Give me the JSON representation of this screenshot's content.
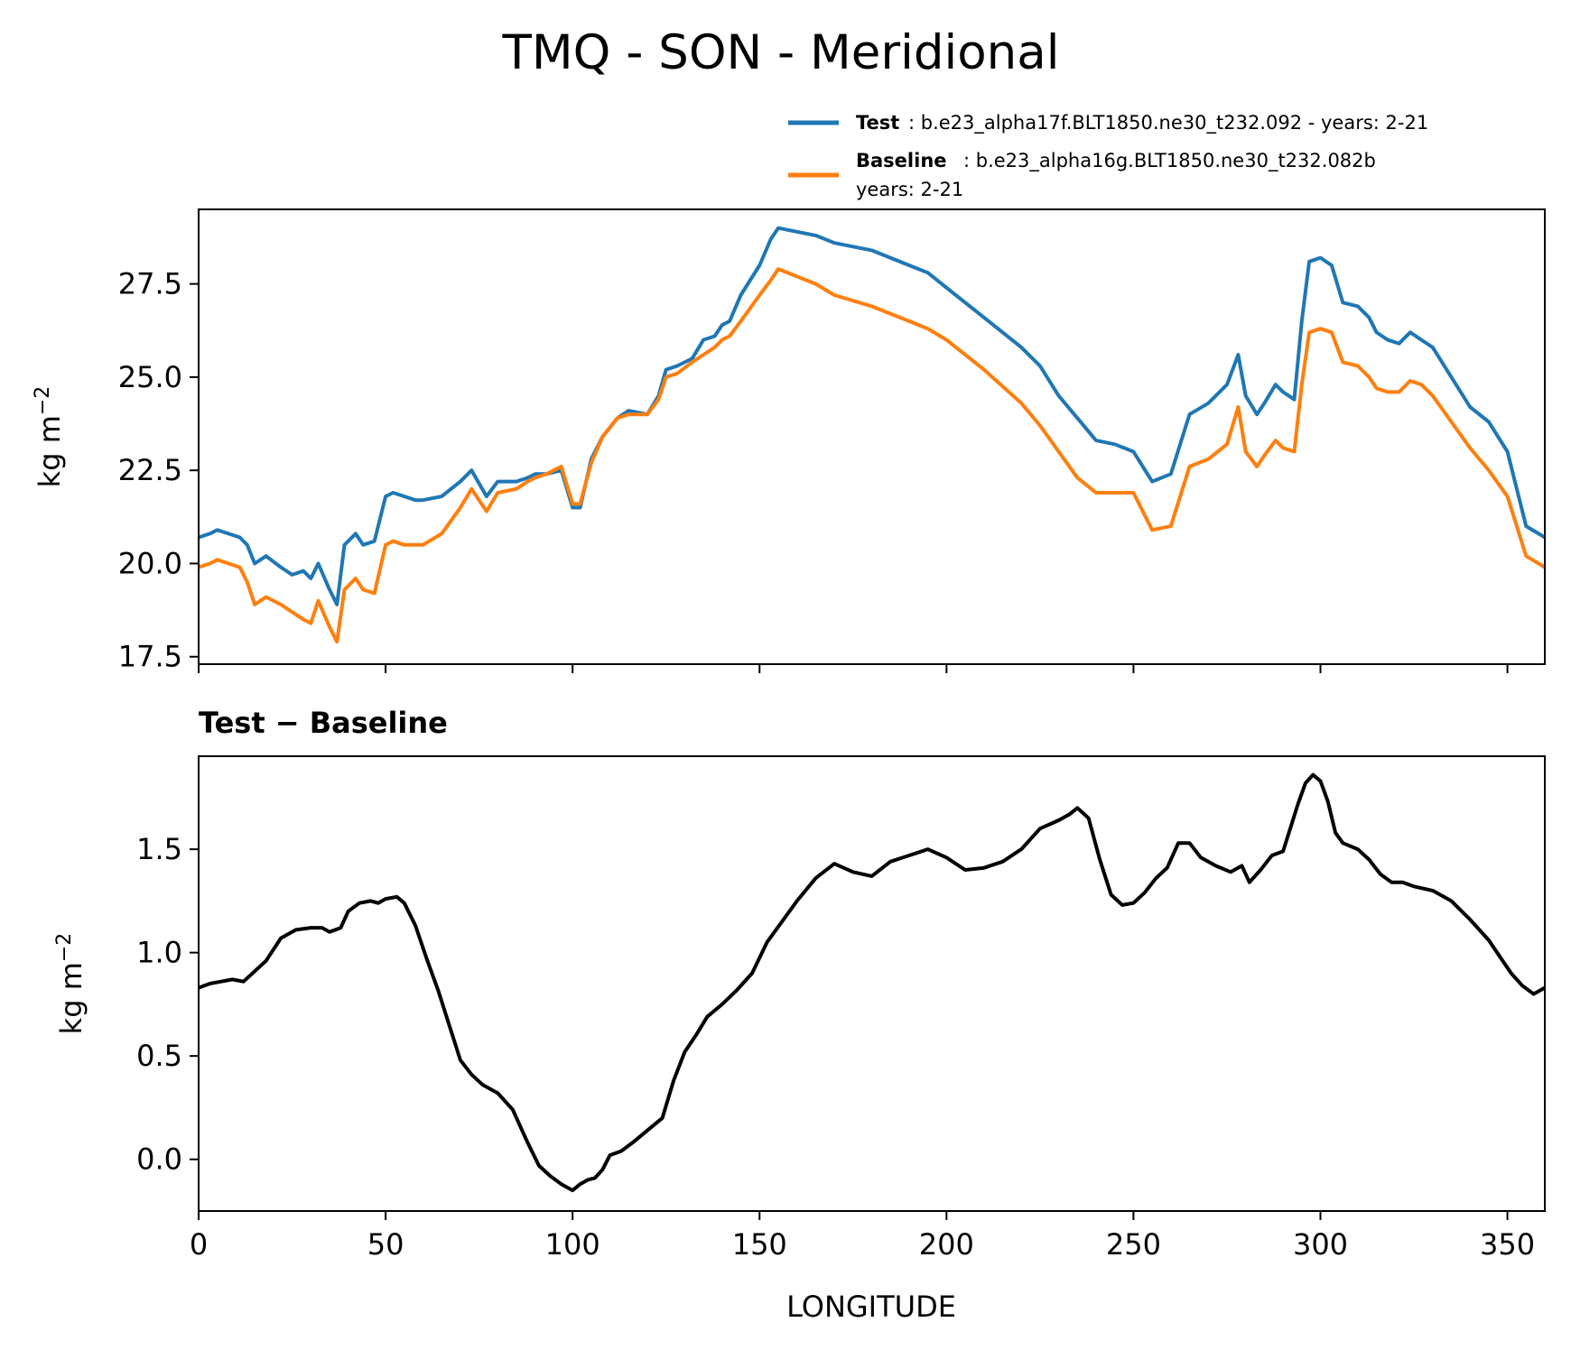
{
  "figure": {
    "title": "TMQ - SON - Meridional",
    "xlabel": "LONGITUDE"
  },
  "legend": {
    "test_name": "Test",
    "test_text": ": b.e23_alpha17f.BLT1850.ne30_t232.092 - years: 2-21",
    "baseline_name": "Baseline",
    "baseline_text": ": b.e23_alpha16g.BLT1850.ne30_t232.082b",
    "baseline_years": "years: 2-21"
  },
  "colors": {
    "test": "#1f77b4",
    "baseline": "#ff7f0e",
    "diff": "#000000"
  },
  "chart_data": [
    {
      "type": "line",
      "title": "",
      "xlabel": "",
      "ylabel": "kg m",
      "ylabel_sup": "−2",
      "xlim": [
        0,
        360
      ],
      "ylim": [
        17.3,
        29.5
      ],
      "yticks": [
        "17.5",
        "20.0",
        "22.5",
        "25.0",
        "27.5"
      ],
      "xticks": [
        0,
        50,
        100,
        150,
        200,
        250,
        300,
        350
      ],
      "grid": false,
      "legend_position": "above-right",
      "series": [
        {
          "name": "Test",
          "x": [
            0,
            3,
            5,
            8,
            11,
            13,
            15,
            18,
            22,
            25,
            28,
            30,
            32,
            35,
            37,
            39,
            42,
            44,
            47,
            50,
            52,
            55,
            58,
            60,
            65,
            70,
            73,
            77,
            80,
            85,
            88,
            90,
            93,
            97,
            100,
            102,
            105,
            108,
            112,
            115,
            120,
            123,
            125,
            128,
            132,
            135,
            138,
            140,
            142,
            145,
            150,
            153,
            155,
            160,
            165,
            170,
            180,
            190,
            195,
            200,
            205,
            210,
            220,
            225,
            230,
            235,
            240,
            245,
            250,
            255,
            260,
            265,
            270,
            275,
            278,
            280,
            283,
            285,
            288,
            290,
            293,
            295,
            297,
            300,
            303,
            306,
            310,
            313,
            315,
            318,
            321,
            324,
            327,
            330,
            335,
            340,
            345,
            350,
            355,
            360
          ],
          "y": [
            20.7,
            20.8,
            20.9,
            20.8,
            20.7,
            20.5,
            20.0,
            20.2,
            19.9,
            19.7,
            19.8,
            19.6,
            20.0,
            19.3,
            18.9,
            20.5,
            20.8,
            20.5,
            20.6,
            21.8,
            21.9,
            21.8,
            21.7,
            21.7,
            21.8,
            22.2,
            22.5,
            21.8,
            22.2,
            22.2,
            22.3,
            22.4,
            22.4,
            22.5,
            21.5,
            21.5,
            22.8,
            23.4,
            23.9,
            24.1,
            24.0,
            24.5,
            25.2,
            25.3,
            25.5,
            26.0,
            26.1,
            26.4,
            26.5,
            27.2,
            28.0,
            28.7,
            29.0,
            28.9,
            28.8,
            28.6,
            28.4,
            28.0,
            27.8,
            27.4,
            27.0,
            26.6,
            25.8,
            25.3,
            24.5,
            23.9,
            23.3,
            23.2,
            23.0,
            22.2,
            22.4,
            24.0,
            24.3,
            24.8,
            25.6,
            24.5,
            24.0,
            24.3,
            24.8,
            24.6,
            24.4,
            26.5,
            28.1,
            28.2,
            28.0,
            27.0,
            26.9,
            26.6,
            26.2,
            26.0,
            25.9,
            26.2,
            26.0,
            25.8,
            25.0,
            24.2,
            23.8,
            23.0,
            21.0,
            20.7
          ]
        },
        {
          "name": "Baseline",
          "x": [
            0,
            3,
            5,
            8,
            11,
            13,
            15,
            18,
            22,
            25,
            28,
            30,
            32,
            35,
            37,
            39,
            42,
            44,
            47,
            50,
            52,
            55,
            58,
            60,
            65,
            70,
            73,
            77,
            80,
            85,
            88,
            90,
            93,
            97,
            100,
            102,
            105,
            108,
            112,
            115,
            120,
            123,
            125,
            128,
            132,
            135,
            138,
            140,
            142,
            145,
            150,
            153,
            155,
            160,
            165,
            170,
            180,
            190,
            195,
            200,
            205,
            210,
            220,
            225,
            230,
            235,
            240,
            245,
            250,
            255,
            260,
            265,
            270,
            275,
            278,
            280,
            283,
            285,
            288,
            290,
            293,
            295,
            297,
            300,
            303,
            306,
            310,
            313,
            315,
            318,
            321,
            324,
            327,
            330,
            335,
            340,
            345,
            350,
            355,
            360
          ],
          "y": [
            19.9,
            20.0,
            20.1,
            20.0,
            19.9,
            19.5,
            18.9,
            19.1,
            18.9,
            18.7,
            18.5,
            18.4,
            19.0,
            18.3,
            17.9,
            19.3,
            19.6,
            19.3,
            19.2,
            20.5,
            20.6,
            20.5,
            20.5,
            20.5,
            20.8,
            21.5,
            22.0,
            21.4,
            21.9,
            22.0,
            22.2,
            22.3,
            22.4,
            22.6,
            21.6,
            21.6,
            22.7,
            23.4,
            23.9,
            24.0,
            24.0,
            24.4,
            25.0,
            25.1,
            25.4,
            25.6,
            25.8,
            26.0,
            26.1,
            26.5,
            27.2,
            27.6,
            27.9,
            27.7,
            27.5,
            27.2,
            26.9,
            26.5,
            26.3,
            26.0,
            25.6,
            25.2,
            24.3,
            23.7,
            23.0,
            22.3,
            21.9,
            21.9,
            21.9,
            20.9,
            21.0,
            22.6,
            22.8,
            23.2,
            24.2,
            23.0,
            22.6,
            22.9,
            23.3,
            23.1,
            23.0,
            24.8,
            26.2,
            26.3,
            26.2,
            25.4,
            25.3,
            25.0,
            24.7,
            24.6,
            24.6,
            24.9,
            24.8,
            24.5,
            23.8,
            23.1,
            22.5,
            21.8,
            20.2,
            19.9
          ]
        }
      ]
    },
    {
      "type": "line",
      "title": "Test − Baseline",
      "xlabel": "LONGITUDE",
      "ylabel": "kg m",
      "ylabel_sup": "−2",
      "xlim": [
        0,
        360
      ],
      "ylim": [
        -0.25,
        1.95
      ],
      "yticks": [
        "0.0",
        "0.5",
        "1.0",
        "1.5"
      ],
      "xticks": [
        0,
        50,
        100,
        150,
        200,
        250,
        300,
        350
      ],
      "xticklabels": [
        "0",
        "50",
        "100",
        "150",
        "200",
        "250",
        "300",
        "350"
      ],
      "grid": false,
      "series": [
        {
          "name": "",
          "x": [
            0,
            3,
            6,
            9,
            12,
            15,
            18,
            22,
            26,
            30,
            33,
            35,
            38,
            40,
            43,
            46,
            48,
            50,
            53,
            55,
            58,
            61,
            64,
            67,
            70,
            73,
            76,
            80,
            84,
            88,
            91,
            94,
            97,
            100,
            102,
            104,
            106,
            108,
            110,
            113,
            116,
            120,
            124,
            127,
            130,
            133,
            136,
            140,
            144,
            148,
            152,
            156,
            160,
            165,
            170,
            175,
            180,
            185,
            190,
            195,
            200,
            205,
            210,
            215,
            220,
            225,
            230,
            233,
            235,
            238,
            241,
            244,
            247,
            250,
            253,
            256,
            259,
            262,
            265,
            268,
            272,
            276,
            279,
            281,
            284,
            287,
            290,
            294,
            296,
            298,
            300,
            302,
            304,
            306,
            310,
            313,
            316,
            319,
            322,
            325,
            330,
            335,
            340,
            345,
            348,
            351,
            354,
            357,
            360
          ],
          "y": [
            0.83,
            0.85,
            0.86,
            0.87,
            0.86,
            0.91,
            0.96,
            1.07,
            1.11,
            1.12,
            1.12,
            1.1,
            1.12,
            1.2,
            1.24,
            1.25,
            1.24,
            1.26,
            1.27,
            1.24,
            1.13,
            0.97,
            0.82,
            0.65,
            0.48,
            0.41,
            0.36,
            0.32,
            0.24,
            0.08,
            -0.03,
            -0.08,
            -0.12,
            -0.15,
            -0.12,
            -0.1,
            -0.09,
            -0.05,
            0.02,
            0.04,
            0.08,
            0.14,
            0.2,
            0.38,
            0.52,
            0.6,
            0.69,
            0.75,
            0.82,
            0.9,
            1.05,
            1.15,
            1.25,
            1.36,
            1.43,
            1.39,
            1.37,
            1.44,
            1.47,
            1.5,
            1.46,
            1.4,
            1.41,
            1.44,
            1.5,
            1.6,
            1.64,
            1.67,
            1.7,
            1.65,
            1.45,
            1.28,
            1.23,
            1.24,
            1.29,
            1.36,
            1.41,
            1.53,
            1.53,
            1.46,
            1.42,
            1.39,
            1.42,
            1.34,
            1.4,
            1.47,
            1.49,
            1.72,
            1.82,
            1.86,
            1.83,
            1.73,
            1.58,
            1.53,
            1.5,
            1.45,
            1.38,
            1.34,
            1.34,
            1.32,
            1.3,
            1.25,
            1.16,
            1.06,
            0.98,
            0.9,
            0.84,
            0.8,
            0.83
          ]
        }
      ]
    }
  ]
}
